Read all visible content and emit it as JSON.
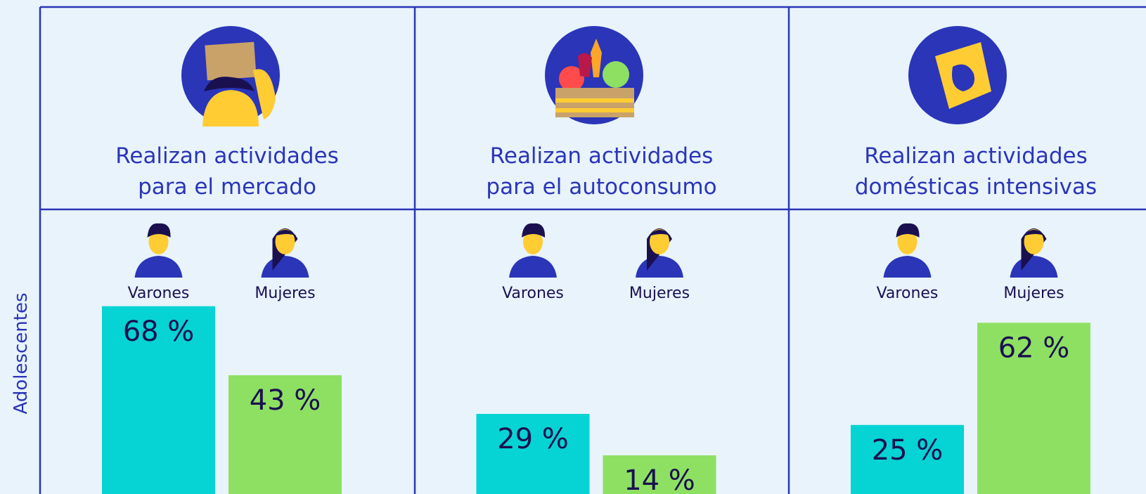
{
  "row_label": "Adolescentes",
  "chart_data": [
    {
      "type": "bar",
      "title": "Realizan actividades\npara el mercado",
      "categories": [
        "Varones",
        "Mujeres"
      ],
      "values": [
        68,
        43
      ],
      "value_labels": [
        "68 %",
        "43 %"
      ],
      "colors": [
        "#06d3d3",
        "#8ee063"
      ],
      "ylim": [
        0,
        100
      ]
    },
    {
      "type": "bar",
      "title": "Realizan actividades\npara el autoconsumo",
      "categories": [
        "Varones",
        "Mujeres"
      ],
      "values": [
        29,
        14
      ],
      "value_labels": [
        "29 %",
        "14 %"
      ],
      "colors": [
        "#06d3d3",
        "#8ee063"
      ],
      "ylim": [
        0,
        100
      ]
    },
    {
      "type": "bar",
      "title": "Realizan actividades\ndomésticas intensivas",
      "categories": [
        "Varones",
        "Mujeres"
      ],
      "values": [
        25,
        62
      ],
      "value_labels": [
        "25 %",
        "62 %"
      ],
      "colors": [
        "#06d3d3",
        "#8ee063"
      ],
      "ylim": [
        0,
        100
      ]
    }
  ]
}
